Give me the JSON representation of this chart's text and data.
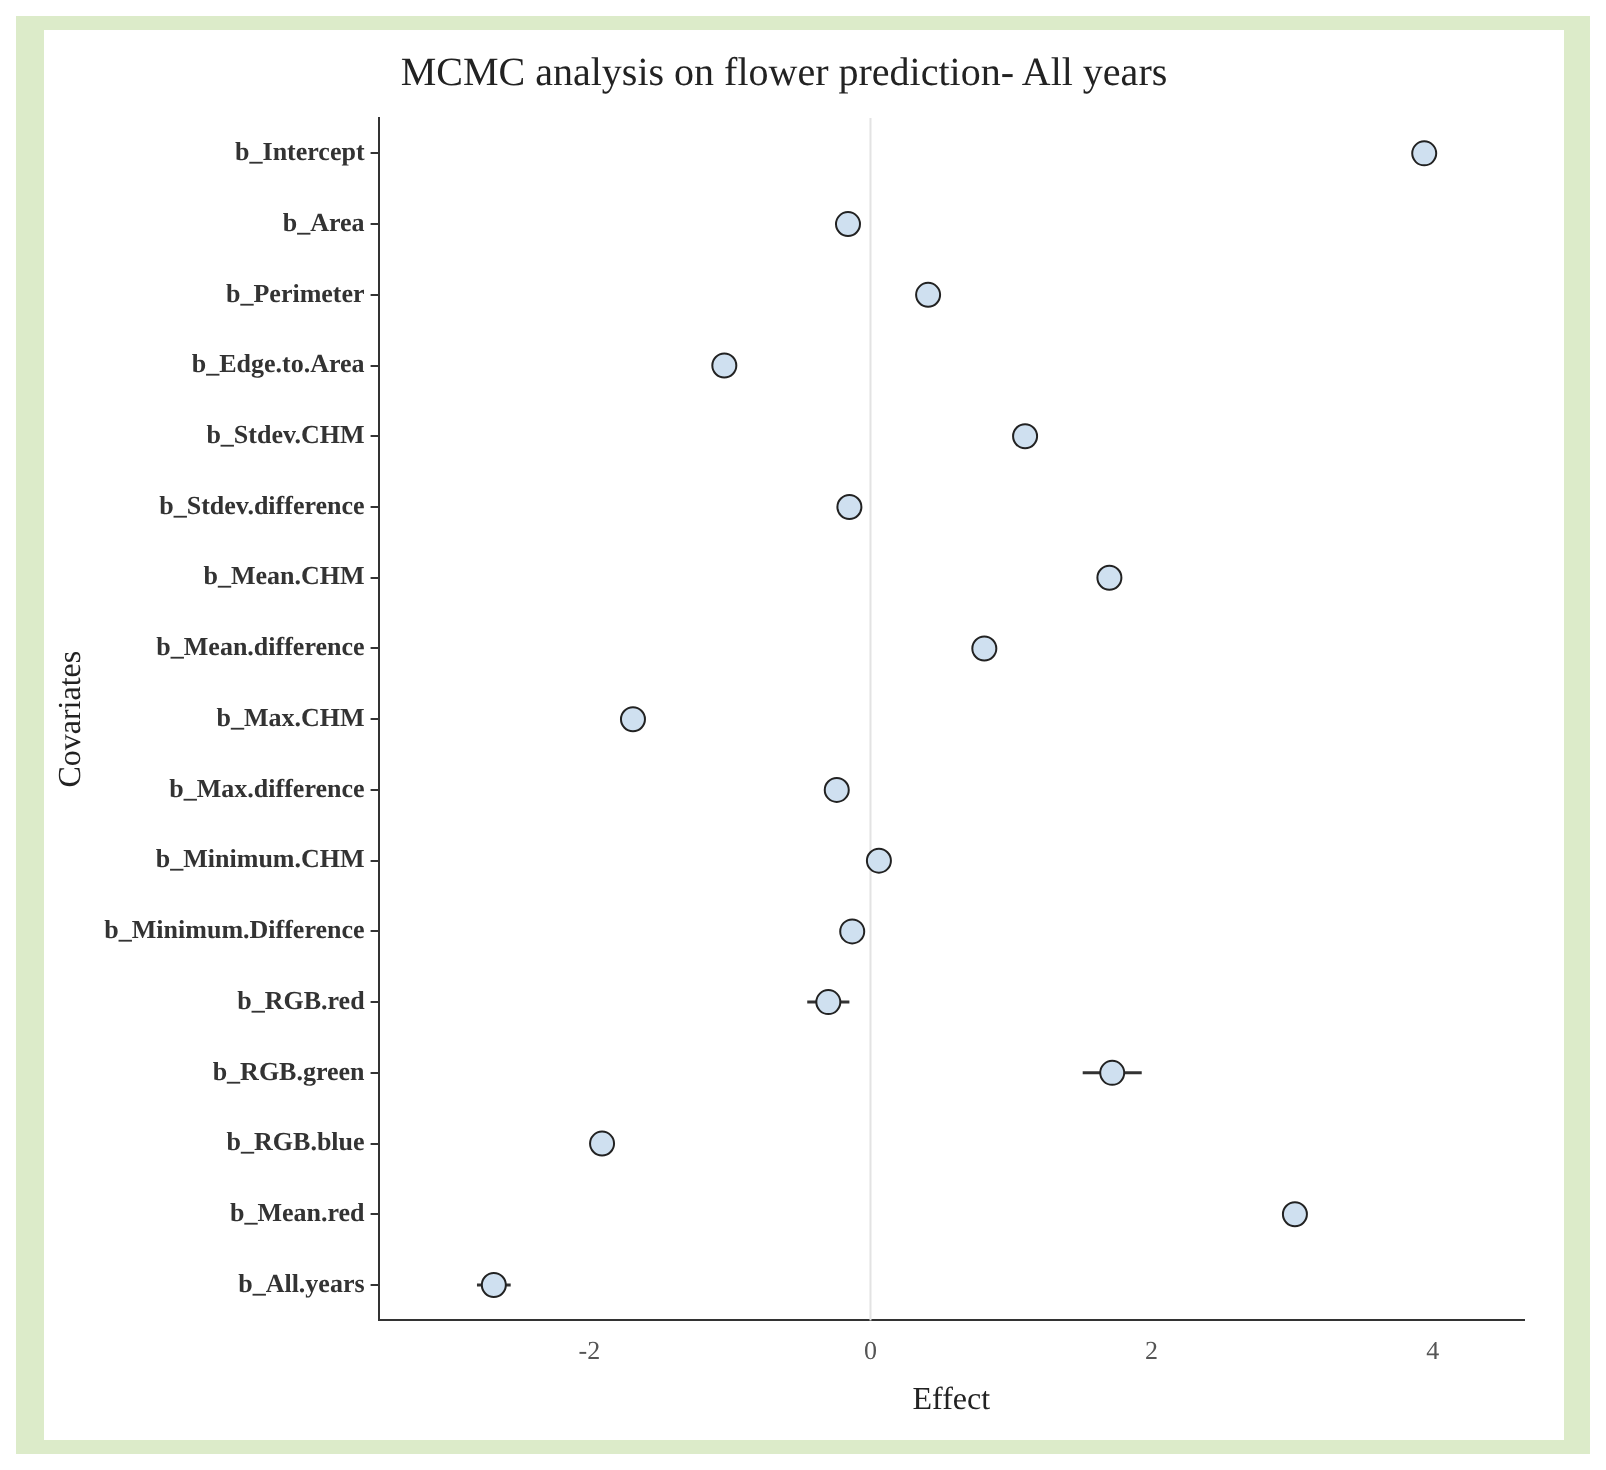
{
  "chart_data": {
    "type": "scatter",
    "orientation": "horizontal",
    "title": "MCMC analysis on flower prediction- All years",
    "xlabel": "Effect",
    "ylabel": "Covariates",
    "categories": [
      "b_Intercept",
      "b_Area",
      "b_Perimeter",
      "b_Edge.to.Area",
      "b_Stdev.CHM",
      "b_Stdev.difference",
      "b_Mean.CHM",
      "b_Mean.difference",
      "b_Max.CHM",
      "b_Max.difference",
      "b_Minimum.CHM",
      "b_Minimum.Difference",
      "b_RGB.red",
      "b_RGB.green",
      "b_RGB.blue",
      "b_Mean.red",
      "b_All.years"
    ],
    "values": [
      3.94,
      -0.16,
      0.41,
      -1.04,
      1.1,
      -0.15,
      1.7,
      0.81,
      -1.69,
      -0.24,
      0.06,
      -0.13,
      -0.3,
      1.72,
      -1.91,
      3.02,
      -2.68
    ],
    "errors": [
      null,
      null,
      null,
      null,
      null,
      null,
      null,
      null,
      null,
      null,
      null,
      null,
      0.15,
      0.21,
      null,
      null,
      0.12
    ],
    "color": "#cfe0f0",
    "marker": "circle",
    "xlim": [
      -3.5,
      4.65
    ],
    "xticks": [
      -2,
      0,
      2,
      4
    ],
    "grid": false,
    "legend": false,
    "ref_lines": [
      {
        "axis": "x",
        "value": 0,
        "color": "#e3e3e3"
      }
    ]
  }
}
